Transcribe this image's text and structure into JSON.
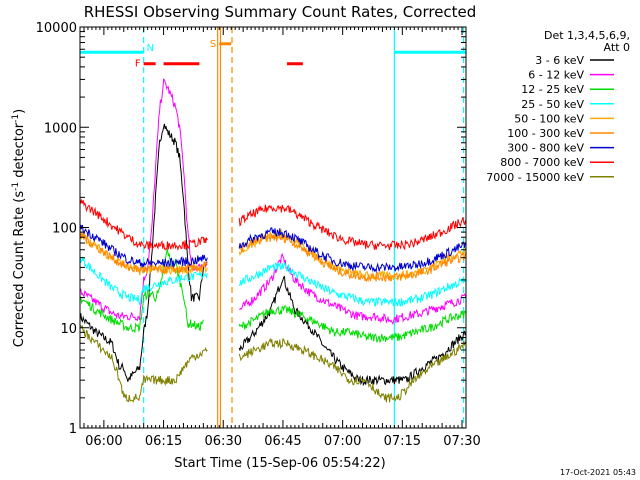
{
  "chart_data": {
    "type": "line",
    "title": "RHESSI Observing Summary Count Rates, Corrected",
    "xlabel": "Start Time (15-Sep-06 05:54:22)",
    "ylabel": "Corrected Count Rate (s",
    "ylabel_exponent": "-1",
    "ylabel_unit": " detector",
    "ylabel_close": ")",
    "footer": "17-Oct-2021 05:43",
    "y_scale": "log",
    "ylim": [
      1,
      10000
    ],
    "xlim_minutes": [
      0,
      97
    ],
    "x_ticks": [
      {
        "m": 6,
        "label": "06:00"
      },
      {
        "m": 21,
        "label": "06:15"
      },
      {
        "m": 36,
        "label": "06:30"
      },
      {
        "m": 51,
        "label": "06:45"
      },
      {
        "m": 66,
        "label": "07:00"
      },
      {
        "m": 81,
        "label": "07:15"
      },
      {
        "m": 96,
        "label": "07:30"
      }
    ],
    "y_ticks": [
      {
        "v": 1,
        "label": "1"
      },
      {
        "v": 10,
        "label": "10"
      },
      {
        "v": 100,
        "label": "100"
      },
      {
        "v": 1000,
        "label": "1000"
      },
      {
        "v": 10000,
        "label": "10000"
      }
    ],
    "legend_position": "right",
    "legend_header": [
      "Det 1,3,4,5,6,9,",
      "Att 0"
    ],
    "series": [
      {
        "name": "3 - 6 keV",
        "color": "#000000",
        "points": [
          [
            0,
            13
          ],
          [
            4,
            9
          ],
          [
            8,
            7
          ],
          [
            10,
            4
          ],
          [
            11,
            4
          ],
          [
            12,
            3
          ],
          [
            15,
            4
          ],
          [
            16,
            9
          ],
          [
            17,
            15
          ],
          [
            18,
            50
          ],
          [
            19,
            200
          ],
          [
            20,
            700
          ],
          [
            21,
            1100
          ],
          [
            22,
            900
          ],
          [
            23,
            800
          ],
          [
            24,
            700
          ],
          [
            25,
            500
          ],
          [
            26,
            200
          ],
          [
            27,
            50
          ],
          [
            28,
            20
          ],
          [
            30,
            20
          ],
          [
            31,
            40
          ],
          [
            32,
            45
          ],
          [
            36,
            null
          ],
          [
            40,
            6
          ],
          [
            44,
            9
          ],
          [
            48,
            15
          ],
          [
            50,
            25
          ],
          [
            51,
            33
          ],
          [
            52,
            25
          ],
          [
            54,
            15
          ],
          [
            58,
            10
          ],
          [
            62,
            6
          ],
          [
            66,
            4
          ],
          [
            70,
            3
          ],
          [
            74,
            3
          ],
          [
            78,
            3
          ],
          [
            82,
            3
          ],
          [
            86,
            4
          ],
          [
            90,
            5
          ],
          [
            94,
            7
          ],
          [
            97,
            9
          ]
        ]
      },
      {
        "name": "6 - 12 keV",
        "color": "#ff00ff",
        "points": [
          [
            0,
            23
          ],
          [
            4,
            18
          ],
          [
            8,
            14
          ],
          [
            10,
            13
          ],
          [
            12,
            13
          ],
          [
            15,
            13
          ],
          [
            16,
            30
          ],
          [
            17,
            40
          ],
          [
            18,
            90
          ],
          [
            19,
            400
          ],
          [
            20,
            1500
          ],
          [
            21,
            2800
          ],
          [
            22,
            2500
          ],
          [
            23,
            2000
          ],
          [
            24,
            1600
          ],
          [
            25,
            1000
          ],
          [
            26,
            400
          ],
          [
            27,
            100
          ],
          [
            28,
            40
          ],
          [
            30,
            40
          ],
          [
            32,
            45
          ],
          [
            36,
            null
          ],
          [
            40,
            15
          ],
          [
            44,
            20
          ],
          [
            48,
            30
          ],
          [
            50,
            45
          ],
          [
            51,
            50
          ],
          [
            52,
            40
          ],
          [
            54,
            30
          ],
          [
            58,
            22
          ],
          [
            62,
            18
          ],
          [
            66,
            15
          ],
          [
            70,
            13
          ],
          [
            74,
            13
          ],
          [
            78,
            12
          ],
          [
            82,
            13
          ],
          [
            86,
            14
          ],
          [
            90,
            16
          ],
          [
            94,
            18
          ],
          [
            97,
            20
          ]
        ]
      },
      {
        "name": "12 - 25 keV",
        "color": "#00dd00",
        "points": [
          [
            0,
            20
          ],
          [
            4,
            15
          ],
          [
            8,
            12
          ],
          [
            10,
            11
          ],
          [
            12,
            10
          ],
          [
            15,
            10
          ],
          [
            16,
            20
          ],
          [
            17,
            22
          ],
          [
            18,
            22
          ],
          [
            19,
            20
          ],
          [
            20,
            23
          ],
          [
            21,
            40
          ],
          [
            22,
            60
          ],
          [
            23,
            40
          ],
          [
            24,
            45
          ],
          [
            25,
            30
          ],
          [
            26,
            22
          ],
          [
            27,
            11
          ],
          [
            28,
            11
          ],
          [
            30,
            10
          ],
          [
            31,
            12
          ],
          [
            36,
            null
          ],
          [
            40,
            10
          ],
          [
            44,
            12
          ],
          [
            48,
            15
          ],
          [
            52,
            15
          ],
          [
            56,
            13
          ],
          [
            60,
            11
          ],
          [
            64,
            9
          ],
          [
            68,
            9
          ],
          [
            72,
            8
          ],
          [
            76,
            8
          ],
          [
            80,
            8
          ],
          [
            84,
            9
          ],
          [
            88,
            10
          ],
          [
            92,
            12
          ],
          [
            97,
            14
          ]
        ]
      },
      {
        "name": "25 - 50 keV",
        "color": "#00ffff",
        "points": [
          [
            0,
            50
          ],
          [
            4,
            35
          ],
          [
            8,
            25
          ],
          [
            12,
            20
          ],
          [
            15,
            19
          ],
          [
            16,
            25
          ],
          [
            18,
            26
          ],
          [
            20,
            28
          ],
          [
            22,
            29
          ],
          [
            24,
            30
          ],
          [
            26,
            32
          ],
          [
            28,
            32
          ],
          [
            30,
            33
          ],
          [
            32,
            35
          ],
          [
            36,
            null
          ],
          [
            40,
            28
          ],
          [
            44,
            33
          ],
          [
            48,
            40
          ],
          [
            52,
            40
          ],
          [
            56,
            32
          ],
          [
            60,
            26
          ],
          [
            64,
            22
          ],
          [
            68,
            20
          ],
          [
            72,
            18
          ],
          [
            76,
            18
          ],
          [
            80,
            18
          ],
          [
            84,
            19
          ],
          [
            88,
            21
          ],
          [
            92,
            25
          ],
          [
            97,
            30
          ]
        ]
      },
      {
        "name": "50 - 100 keV",
        "color": "#ffaa00",
        "points": [
          [
            0,
            85
          ],
          [
            4,
            65
          ],
          [
            8,
            50
          ],
          [
            12,
            40
          ],
          [
            15,
            37
          ],
          [
            16,
            38
          ],
          [
            20,
            38
          ],
          [
            24,
            38
          ],
          [
            28,
            38
          ],
          [
            32,
            40
          ],
          [
            36,
            null
          ],
          [
            40,
            55
          ],
          [
            44,
            70
          ],
          [
            48,
            85
          ],
          [
            52,
            85
          ],
          [
            56,
            65
          ],
          [
            60,
            50
          ],
          [
            64,
            40
          ],
          [
            68,
            35
          ],
          [
            72,
            33
          ],
          [
            76,
            33
          ],
          [
            80,
            33
          ],
          [
            84,
            35
          ],
          [
            88,
            40
          ],
          [
            92,
            50
          ],
          [
            97,
            58
          ]
        ]
      },
      {
        "name": "100 - 300 keV",
        "color": "#ff8800",
        "points": [
          [
            0,
            85
          ],
          [
            4,
            65
          ],
          [
            8,
            50
          ],
          [
            12,
            40
          ],
          [
            15,
            38
          ],
          [
            16,
            38
          ],
          [
            20,
            38
          ],
          [
            24,
            38
          ],
          [
            28,
            39
          ],
          [
            32,
            42
          ],
          [
            36,
            null
          ],
          [
            40,
            60
          ],
          [
            44,
            72
          ],
          [
            48,
            80
          ],
          [
            52,
            78
          ],
          [
            56,
            62
          ],
          [
            60,
            48
          ],
          [
            64,
            38
          ],
          [
            68,
            34
          ],
          [
            72,
            32
          ],
          [
            76,
            32
          ],
          [
            80,
            32
          ],
          [
            84,
            34
          ],
          [
            88,
            38
          ],
          [
            92,
            45
          ],
          [
            97,
            52
          ]
        ]
      },
      {
        "name": "300 - 800 keV",
        "color": "#0000cc",
        "points": [
          [
            0,
            100
          ],
          [
            4,
            80
          ],
          [
            8,
            60
          ],
          [
            12,
            48
          ],
          [
            15,
            44
          ],
          [
            16,
            44
          ],
          [
            20,
            44
          ],
          [
            24,
            45
          ],
          [
            28,
            46
          ],
          [
            32,
            50
          ],
          [
            36,
            null
          ],
          [
            40,
            65
          ],
          [
            44,
            80
          ],
          [
            48,
            90
          ],
          [
            52,
            88
          ],
          [
            56,
            70
          ],
          [
            60,
            55
          ],
          [
            64,
            46
          ],
          [
            68,
            42
          ],
          [
            72,
            40
          ],
          [
            76,
            40
          ],
          [
            80,
            40
          ],
          [
            84,
            42
          ],
          [
            88,
            47
          ],
          [
            92,
            55
          ],
          [
            97,
            68
          ]
        ]
      },
      {
        "name": "800 - 7000 keV",
        "color": "#ff0000",
        "points": [
          [
            0,
            180
          ],
          [
            4,
            140
          ],
          [
            8,
            105
          ],
          [
            12,
            80
          ],
          [
            15,
            68
          ],
          [
            16,
            66
          ],
          [
            20,
            66
          ],
          [
            24,
            67
          ],
          [
            28,
            68
          ],
          [
            32,
            75
          ],
          [
            36,
            null
          ],
          [
            40,
            115
          ],
          [
            44,
            140
          ],
          [
            48,
            160
          ],
          [
            52,
            155
          ],
          [
            56,
            125
          ],
          [
            60,
            100
          ],
          [
            64,
            82
          ],
          [
            68,
            72
          ],
          [
            72,
            67
          ],
          [
            76,
            66
          ],
          [
            80,
            66
          ],
          [
            84,
            70
          ],
          [
            88,
            80
          ],
          [
            92,
            95
          ],
          [
            97,
            120
          ]
        ]
      },
      {
        "name": "7000 - 15000 keV",
        "color": "#808000",
        "points": [
          [
            0,
            10
          ],
          [
            4,
            7
          ],
          [
            8,
            5
          ],
          [
            10,
            3
          ],
          [
            11,
            2
          ],
          [
            13,
            2
          ],
          [
            15,
            2
          ],
          [
            16,
            3
          ],
          [
            18,
            3
          ],
          [
            20,
            3
          ],
          [
            22,
            3
          ],
          [
            24,
            3
          ],
          [
            26,
            4
          ],
          [
            28,
            5
          ],
          [
            32,
            6
          ],
          [
            36,
            null
          ],
          [
            40,
            5
          ],
          [
            44,
            6
          ],
          [
            48,
            7
          ],
          [
            52,
            7
          ],
          [
            56,
            6
          ],
          [
            60,
            5
          ],
          [
            64,
            4
          ],
          [
            68,
            3
          ],
          [
            72,
            3
          ],
          [
            76,
            2
          ],
          [
            80,
            2
          ],
          [
            84,
            3
          ],
          [
            88,
            4
          ],
          [
            92,
            5
          ],
          [
            97,
            7
          ]
        ]
      }
    ],
    "markers": [
      {
        "label": "N",
        "color": "#00ffff",
        "y": 5600,
        "segments": [
          [
            0,
            16
          ],
          [
            79,
            97
          ]
        ]
      },
      {
        "label": "F",
        "color": "#ff0000",
        "y": 4300,
        "segments": [
          [
            16,
            19
          ],
          [
            21,
            30
          ],
          [
            52,
            56
          ]
        ]
      },
      {
        "label": "S",
        "color": "#ff8800",
        "y": 6800,
        "segments": [
          [
            35,
            38
          ]
        ]
      }
    ],
    "vertical_lines": [
      {
        "m": 16,
        "color": "#00ffff",
        "style": "dashed"
      },
      {
        "m": 79,
        "color": "#00ffff",
        "style": "solid"
      },
      {
        "m": 96.4,
        "color": "#00ffff",
        "style": "dashed"
      },
      {
        "m": 34.6,
        "color": "#ff8800",
        "style": "solid"
      },
      {
        "m": 35.3,
        "color": "#ff8800",
        "style": "solid"
      },
      {
        "m": 38.2,
        "color": "#ff8800",
        "style": "dashed"
      }
    ]
  }
}
